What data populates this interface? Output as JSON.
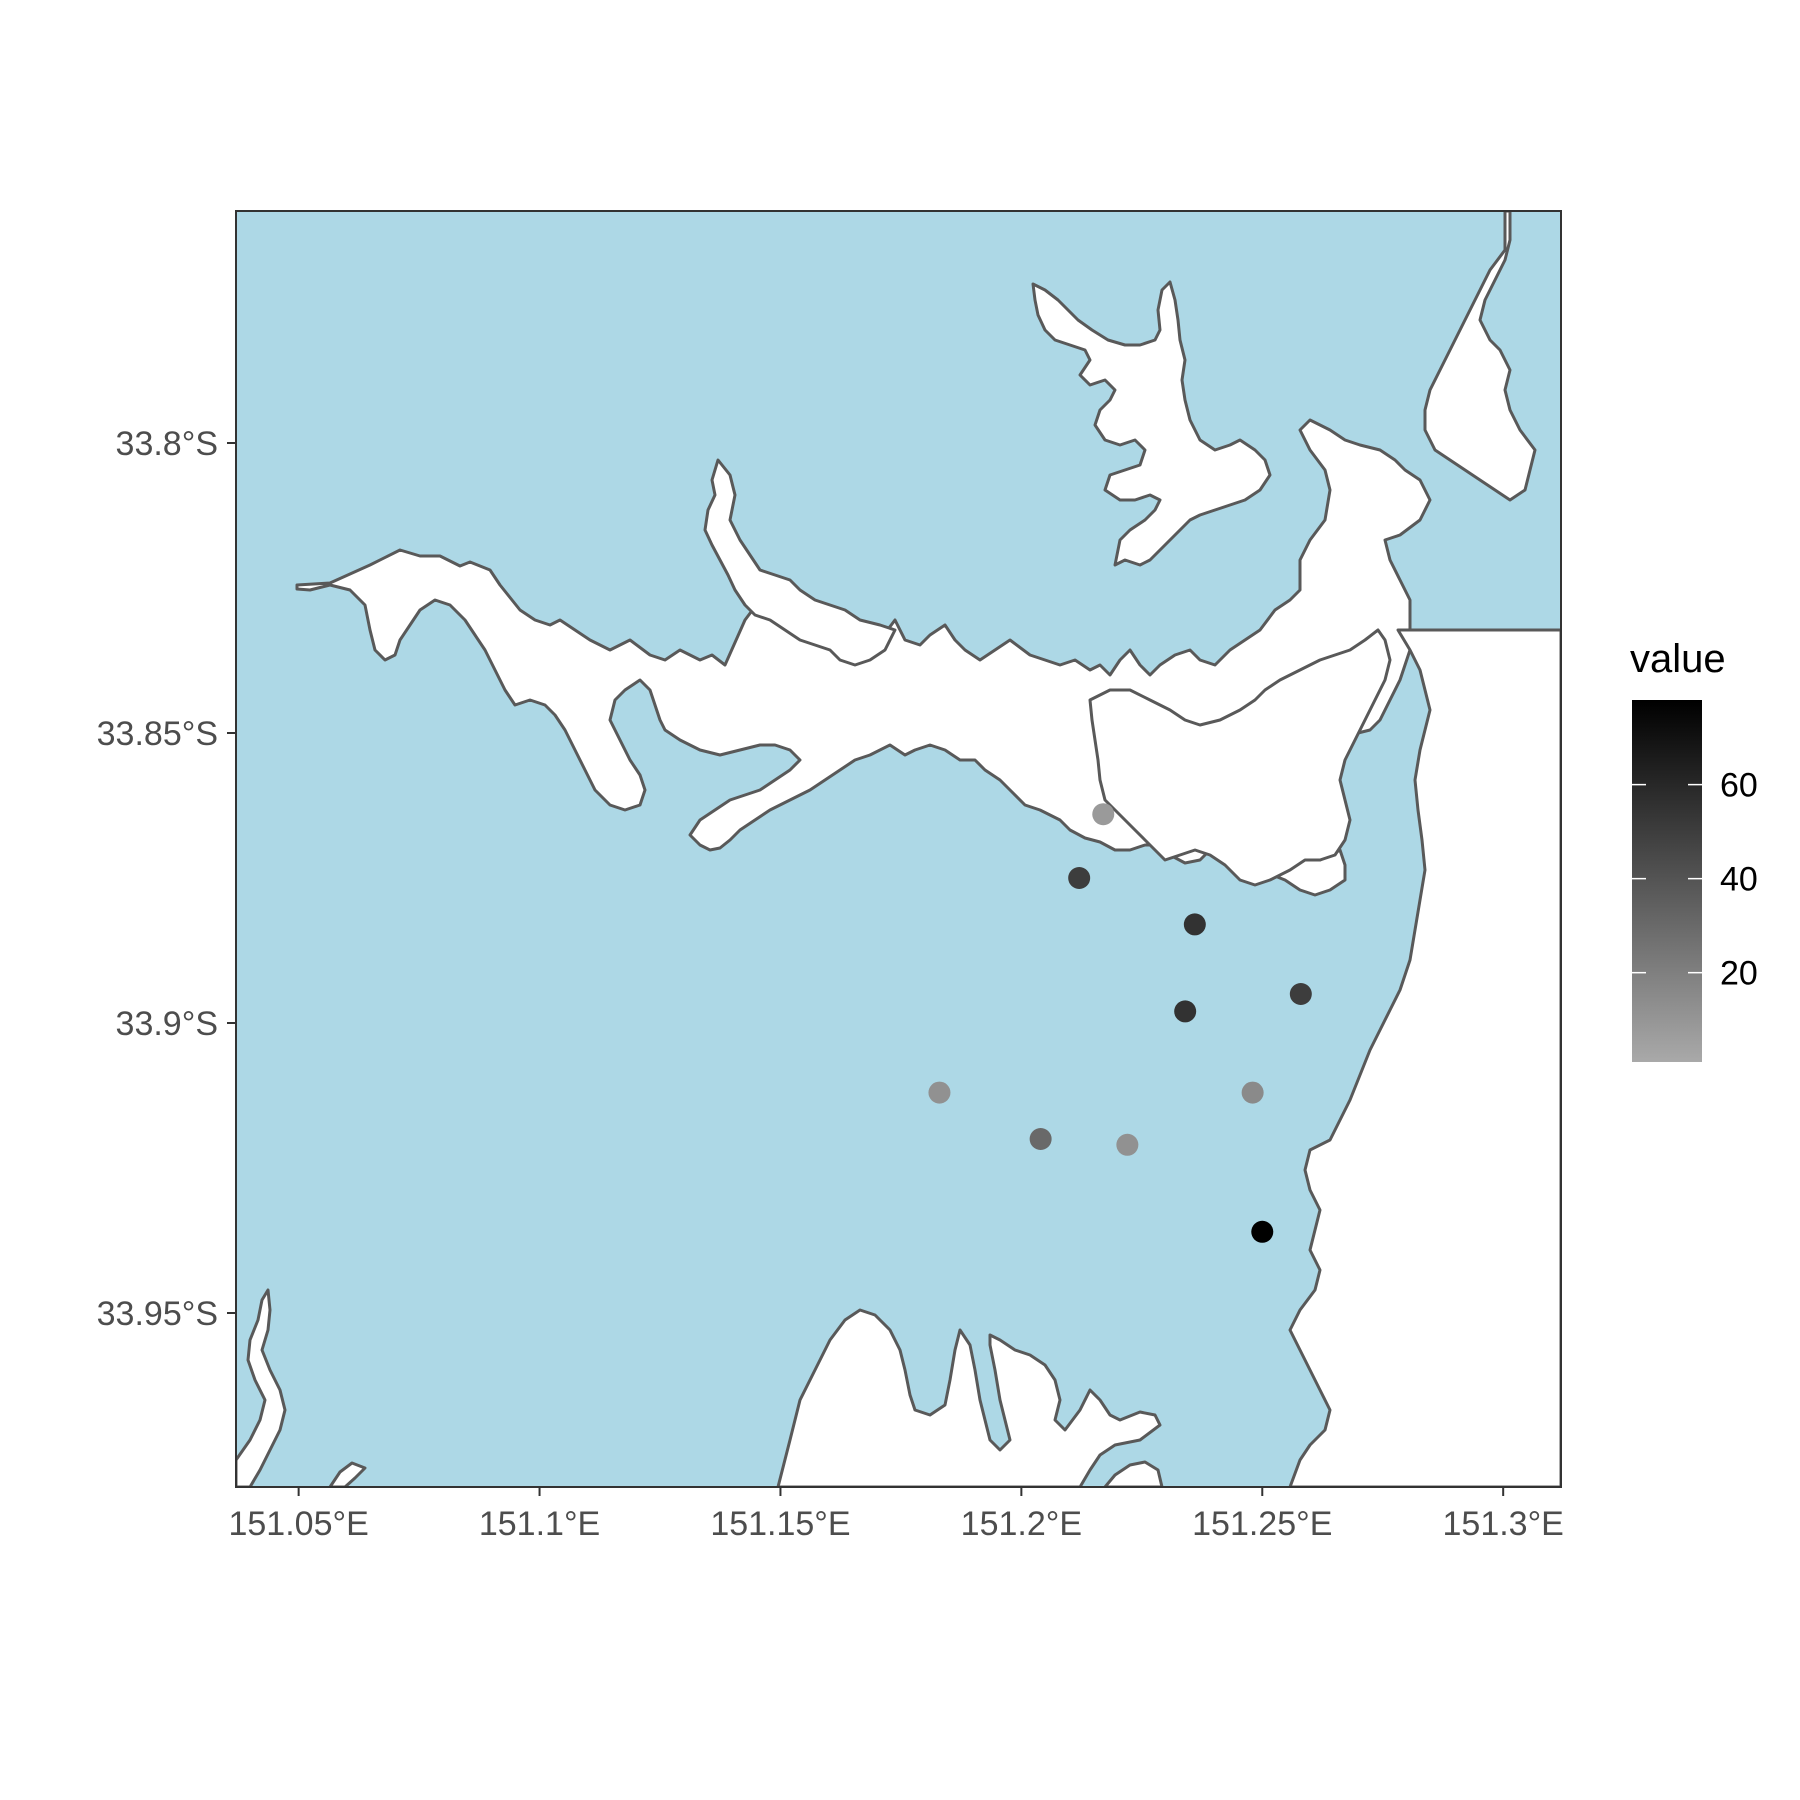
{
  "chart_data": {
    "type": "scatter",
    "title": "",
    "xlabel": "",
    "ylabel": "",
    "xlim": [
      151.037,
      151.312
    ],
    "ylim": [
      -33.98,
      -33.76
    ],
    "x_ticks": [
      151.05,
      151.1,
      151.15,
      151.2,
      151.25,
      151.3
    ],
    "x_tick_labels": [
      "151.05°E",
      "151.1°E",
      "151.15°E",
      "151.2°E",
      "151.25°E",
      "151.3°E"
    ],
    "y_ticks": [
      -33.8,
      -33.85,
      -33.9,
      -33.95
    ],
    "y_tick_labels": [
      "33.8°S",
      "33.85°S",
      "33.9°S",
      "33.95°S"
    ],
    "grid": false,
    "background_color": "#add8e6",
    "land_color": "#ffffff",
    "coast_color": "#595959",
    "points": [
      {
        "x": 151.217,
        "y": -33.864,
        "value": 8
      },
      {
        "x": 151.212,
        "y": -33.875,
        "value": 50
      },
      {
        "x": 151.236,
        "y": -33.883,
        "value": 55
      },
      {
        "x": 151.234,
        "y": -33.898,
        "value": 55
      },
      {
        "x": 151.258,
        "y": -33.895,
        "value": 50
      },
      {
        "x": 151.183,
        "y": -33.912,
        "value": 12
      },
      {
        "x": 151.248,
        "y": -33.912,
        "value": 15
      },
      {
        "x": 151.204,
        "y": -33.92,
        "value": 30
      },
      {
        "x": 151.222,
        "y": -33.921,
        "value": 12
      },
      {
        "x": 151.25,
        "y": -33.936,
        "value": 78
      }
    ],
    "legend": {
      "title": "value",
      "position": "right",
      "min": 1,
      "max": 78,
      "ticks": [
        20,
        40,
        60
      ],
      "tick_labels": [
        "20",
        "40",
        "60"
      ],
      "color_low": "#a9a9a9",
      "color_high": "#000000"
    }
  }
}
